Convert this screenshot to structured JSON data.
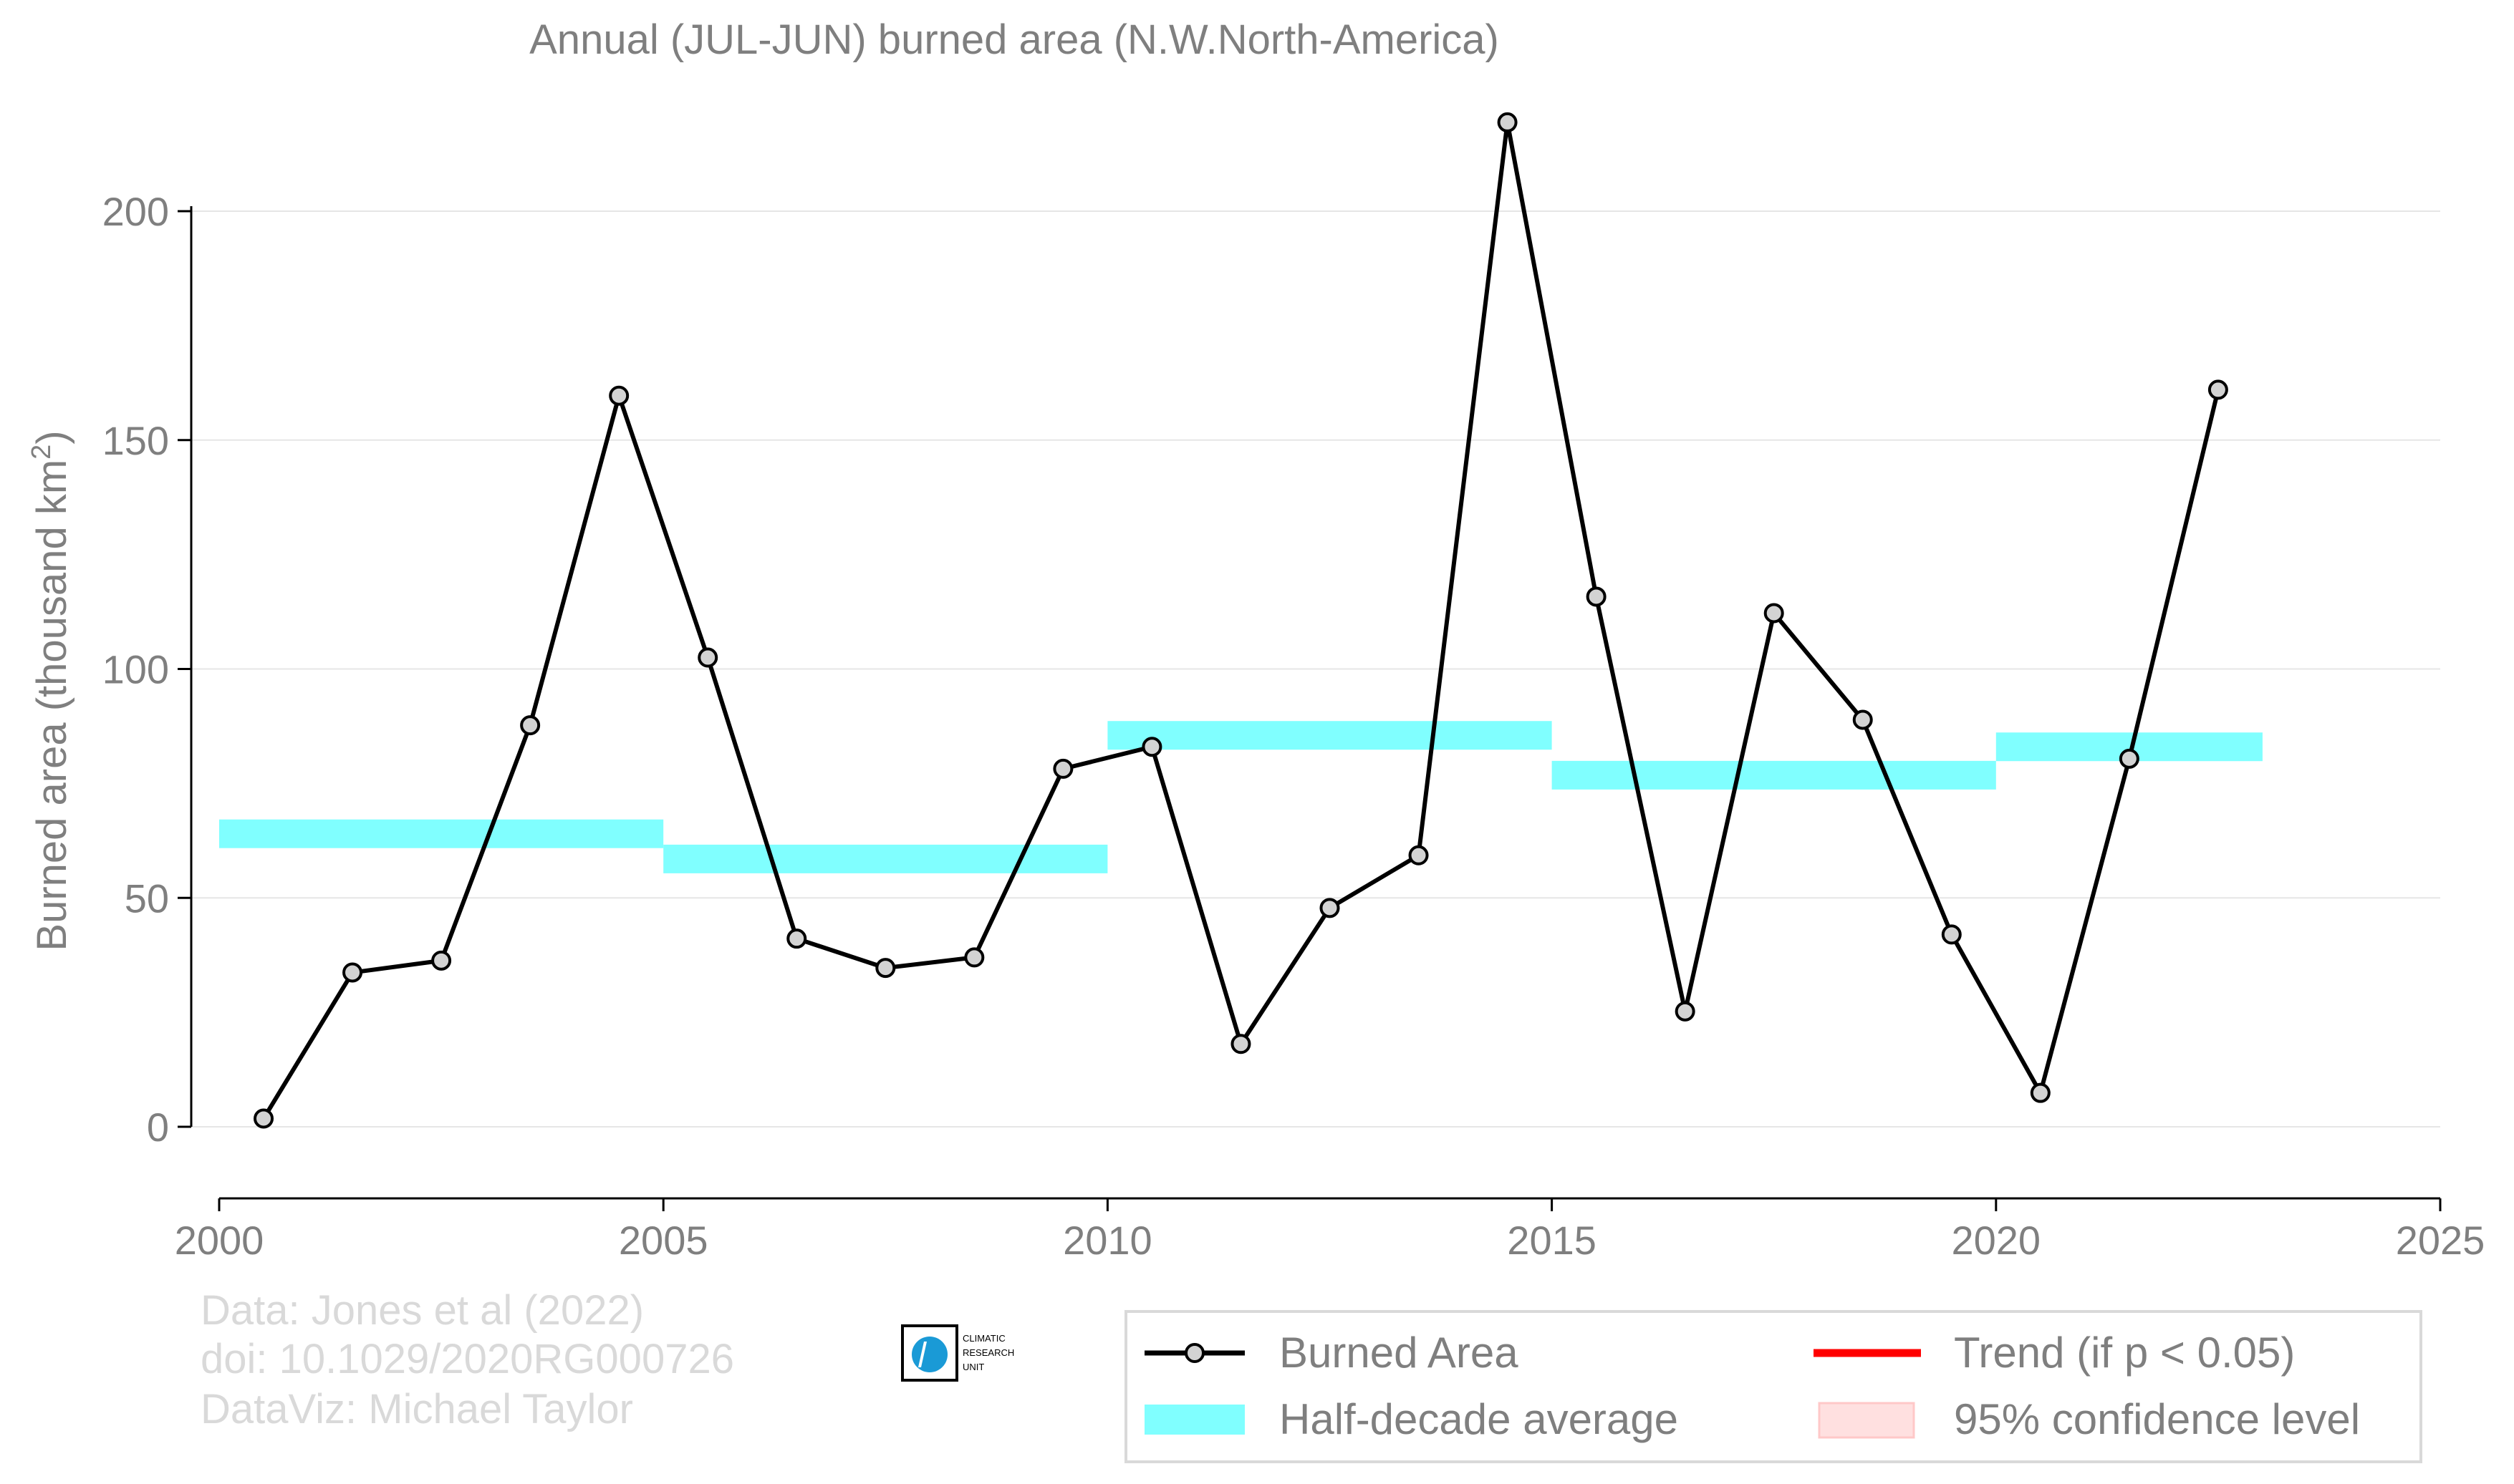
{
  "chart_data": {
    "type": "line",
    "title": "Annual (JUL-JUN) burned area (N.W.North-America)",
    "xlabel": "",
    "ylabel": "Burned area (thousand km",
    "ylabel_superscript": "2",
    "ylabel_close": ")",
    "xlim": [
      2000,
      2025
    ],
    "ylim": [
      -15,
      225
    ],
    "x_ticks": [
      2000,
      2005,
      2010,
      2015,
      2020,
      2025
    ],
    "y_ticks": [
      0,
      50,
      100,
      150,
      200
    ],
    "grid": "horizontal",
    "legend_position": "bottom-right",
    "series": [
      {
        "name": "Burned Area",
        "type": "line",
        "color": "#000000",
        "marker_fill": "#d3d3d3",
        "x": [
          2000.5,
          2001.5,
          2002.5,
          2003.5,
          2004.5,
          2005.5,
          2006.5,
          2007.5,
          2008.5,
          2009.5,
          2010.5,
          2011.5,
          2012.5,
          2013.5,
          2014.5,
          2015.5,
          2016.5,
          2017.5,
          2018.5,
          2019.5,
          2020.5,
          2021.5,
          2022.5
        ],
        "y": [
          1.8,
          33.7,
          36.3,
          87.7,
          159.7,
          102.5,
          41.1,
          34.7,
          37.0,
          78.2,
          83.0,
          18.1,
          47.8,
          59.3,
          219.4,
          115.8,
          25.2,
          112.2,
          88.9,
          42.0,
          7.4,
          80.4,
          161.0
        ]
      },
      {
        "name": "Half-decade average",
        "type": "step",
        "color": "#80ffff",
        "segments": [
          {
            "x": [
              2000,
              2005
            ],
            "y": 64.0
          },
          {
            "x": [
              2005,
              2010
            ],
            "y": 58.5
          },
          {
            "x": [
              2010,
              2015
            ],
            "y": 85.5
          },
          {
            "x": [
              2015,
              2020
            ],
            "y": 76.8
          },
          {
            "x": [
              2020,
              2023
            ],
            "y": 83.0
          }
        ]
      }
    ],
    "legend": [
      {
        "label": "Burned Area",
        "symbol": "line-marker",
        "color": "#000000"
      },
      {
        "label": "Trend (if p < 0.05)",
        "symbol": "line",
        "color": "#ff0000"
      },
      {
        "label": "Half-decade average",
        "symbol": "band",
        "color": "#80ffff"
      },
      {
        "label": "95% confidence level",
        "symbol": "patch",
        "color": "#ffe0e0"
      }
    ]
  },
  "credits": {
    "line1": "Data: Jones et al (2022)",
    "line2": "doi: 10.1029/2020RG000726",
    "line3": "DataViz: Michael Taylor"
  },
  "logo": {
    "line1": "CLIMATIC",
    "line2": "RESEARCH",
    "line3": "UNIT"
  }
}
